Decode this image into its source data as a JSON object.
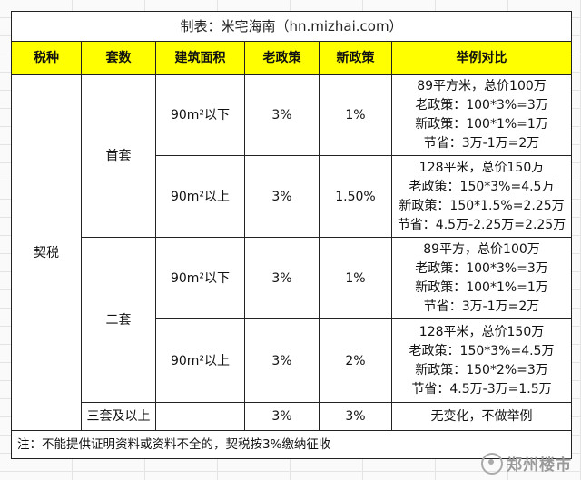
{
  "title": "制表：米宅海南（hn.mizhai.com）",
  "headers": [
    "税种",
    "套数",
    "建筑面积",
    "老政策",
    "新政策",
    "举例对比"
  ],
  "tax_type": "契税",
  "sets": {
    "first": "首套",
    "second": "二套",
    "third_plus": "三套及以上"
  },
  "rows": [
    {
      "area": "90m²以下",
      "old": "3%",
      "new": "1%",
      "example": [
        "89平方米，总价100万",
        "老政策：100*3%=3万",
        "新政策：100*1%=1万",
        "节省：3万-1万=2万"
      ]
    },
    {
      "area": "90m²以上",
      "old": "3%",
      "new": "1.50%",
      "example": [
        "128平米，总价150万",
        "老政策：150*3%=4.5万",
        "新政策：150*1.5%=2.25万",
        "节省：4.5万-2.25万=2.25万"
      ]
    },
    {
      "area": "90m²以下",
      "old": "3%",
      "new": "1%",
      "example": [
        "89平方，总价100万",
        "老政策：100*3%=3万",
        "新政策：100*1%=1万",
        "节省：3万-1万=2万"
      ]
    },
    {
      "area": "90m²以上",
      "old": "3%",
      "new": "2%",
      "example": [
        "128平米，总价150万",
        "老政策：150*3%=4.5万",
        "新政策：150*2%=3万",
        "节省：4.5万-3万=1.5万"
      ]
    },
    {
      "area": "",
      "old": "3%",
      "new": "3%",
      "example": [
        "无变化，不做举例"
      ]
    }
  ],
  "note": "注：不能提供证明资料或资料不全的，契税按3%缴纳征收",
  "watermark": "郑州楼市"
}
